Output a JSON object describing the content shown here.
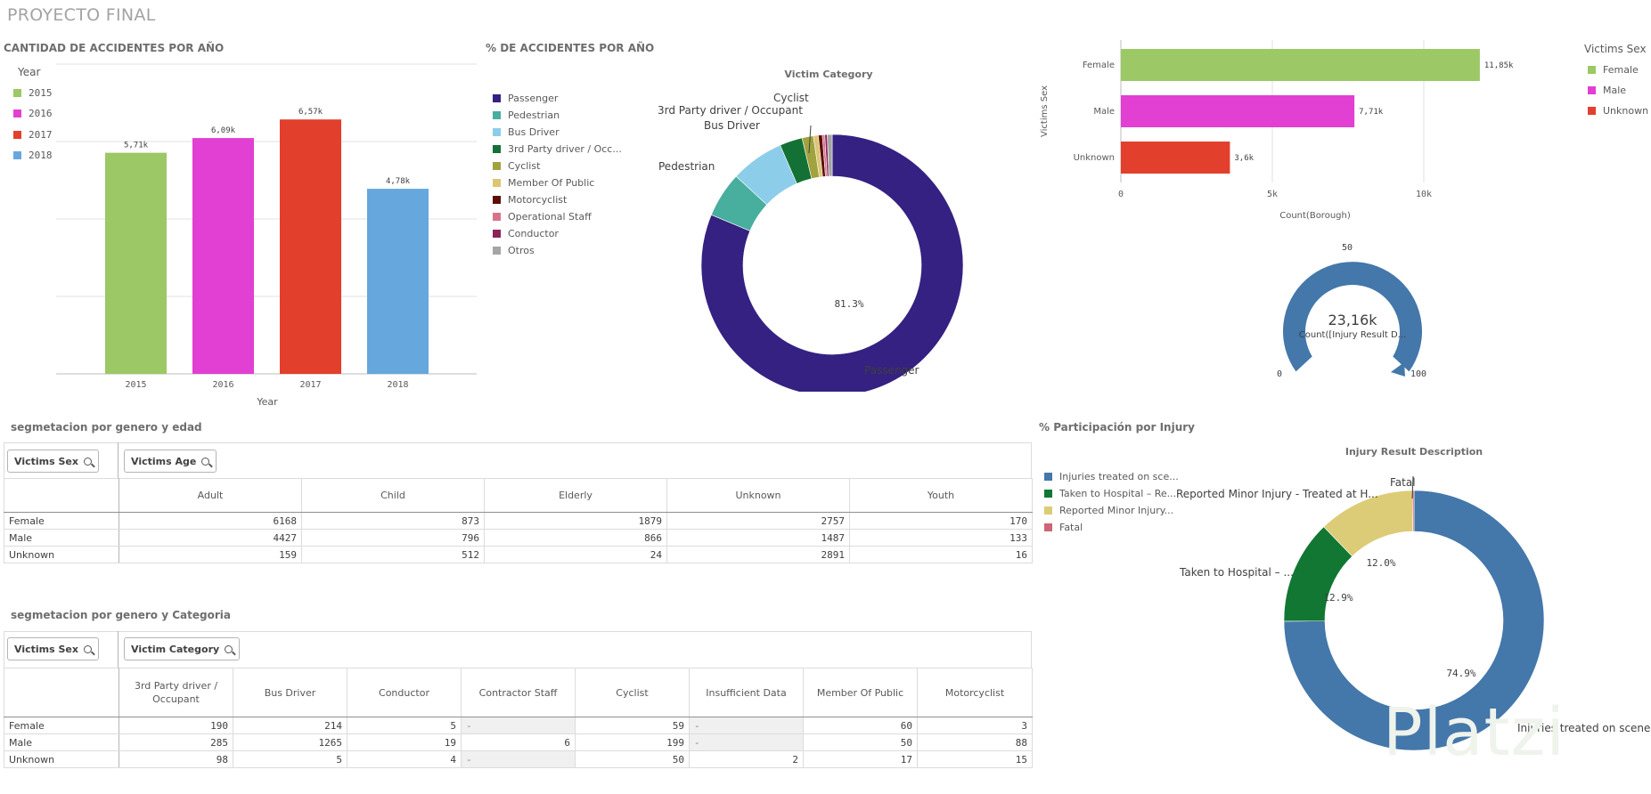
{
  "app": {
    "title": "PROYECTO FINAL"
  },
  "colors": {
    "year_2015": "#9cc865",
    "year_2016": "#e23fd3",
    "year_2017": "#e23f2c",
    "year_2018": "#66a8dd",
    "passenger": "#342181",
    "pedestrian": "#48ae9d",
    "bus_driver": "#8ccde9",
    "third_party": "#137135",
    "cyclist": "#a0a33e",
    "member_public": "#dcc671",
    "motorcyclist": "#5c0e08",
    "operational": "#d9738a",
    "conductor": "#8b2359",
    "otros": "#a5a5a5",
    "inj_scene": "#4477aa",
    "inj_hospital": "#117733",
    "inj_minor": "#ddcc77",
    "inj_fatal": "#cc6677"
  },
  "panel_year_bars": {
    "title": "CANTIDAD DE ACCIDENTES POR AÑO",
    "legend_title": "Year",
    "legend": [
      "2015",
      "2016",
      "2017",
      "2018"
    ],
    "chart_data": {
      "type": "bar",
      "categories": [
        "2015",
        "2016",
        "2017",
        "2018"
      ],
      "values": [
        5710,
        6090,
        6570,
        4780
      ],
      "value_labels": [
        "5,71k",
        "6,09k",
        "6,57k",
        "4,78k"
      ],
      "xlabel": "Year",
      "ylabel": "",
      "ylim": [
        0,
        8000
      ],
      "grid": true
    }
  },
  "panel_pct_year": {
    "title": "% DE ACCIDENTES POR AÑO",
    "chart_title": "Victim Category",
    "legend": [
      "Passenger",
      "Pedestrian",
      "Bus Driver",
      "3rd Party driver / Occ...",
      "Cyclist",
      "Member Of Public",
      "Motorcyclist",
      "Operational Staff",
      "Conductor",
      "Otros"
    ],
    "slice_labels": {
      "passenger": "Passenger",
      "pedestrian": "Pedestrian",
      "bus_driver": "Bus Driver",
      "third_party": "3rd Party driver / Occupant",
      "cyclist": "Cyclist"
    },
    "center_label": "81.3%",
    "chart_data": {
      "type": "pie",
      "categories": [
        "Passenger",
        "Pedestrian",
        "Bus Driver",
        "3rd Party driver / Occupant",
        "Cyclist",
        "Member Of Public",
        "Motorcyclist",
        "Operational Staff",
        "Conductor",
        "Otros"
      ],
      "values": [
        81.3,
        5.6,
        6.6,
        2.8,
        1.4,
        0.6,
        0.5,
        0.3,
        0.3,
        0.6
      ],
      "title": "Victim Category",
      "legend_position": "left"
    }
  },
  "panel_sex_bars": {
    "legend_title": "Victims Sex",
    "legend": [
      "Female",
      "Male",
      "Unknown"
    ],
    "chart_data": {
      "type": "bar",
      "orientation": "horizontal",
      "categories": [
        "Female",
        "Male",
        "Unknown"
      ],
      "values": [
        11850,
        7710,
        3600
      ],
      "value_labels": [
        "11,85k",
        "7,71k",
        "3,6k"
      ],
      "xlabel": "Count(Borough)",
      "ylabel": "Victims Sex",
      "xlim": [
        0,
        15000
      ],
      "x_ticks": [
        "0",
        "5k",
        "10k",
        "15k"
      ],
      "legend_position": "right"
    }
  },
  "panel_gauge": {
    "value_text": "23,16k",
    "measure": "Count([Injury Result D...",
    "min": "0",
    "mid": "50",
    "max": "100"
  },
  "panel_age_table": {
    "title": "segmetacion por genero y edad",
    "row_dim": "Victims Sex",
    "col_dim": "Victims Age",
    "columns": [
      "Adult",
      "Child",
      "Elderly",
      "Unknown",
      "Youth"
    ],
    "rows": [
      {
        "label": "Female",
        "values": [
          "6168",
          "873",
          "1879",
          "2757",
          "170"
        ]
      },
      {
        "label": "Male",
        "values": [
          "4427",
          "796",
          "866",
          "1487",
          "133"
        ]
      },
      {
        "label": "Unknown",
        "values": [
          "159",
          "512",
          "24",
          "2891",
          "16"
        ]
      }
    ]
  },
  "panel_cat_table": {
    "title": "segmetacion por genero y Categoria",
    "row_dim": "Victims Sex",
    "col_dim": "Victim Category",
    "columns": [
      "3rd Party driver / Occupant",
      "Bus Driver",
      "Conductor",
      "Contractor Staff",
      "Cyclist",
      "Insufficient Data",
      "Member Of Public",
      "Motorcyclist"
    ],
    "rows": [
      {
        "label": "Female",
        "values": [
          "190",
          "214",
          "5",
          "-",
          "59",
          "-",
          "60",
          "3"
        ]
      },
      {
        "label": "Male",
        "values": [
          "285",
          "1265",
          "19",
          "6",
          "199",
          "-",
          "50",
          "88"
        ]
      },
      {
        "label": "Unknown",
        "values": [
          "98",
          "5",
          "4",
          "-",
          "50",
          "2",
          "17",
          "15"
        ]
      }
    ]
  },
  "panel_injury": {
    "title": "% Participación por Injury",
    "chart_title": "Injury Result Description",
    "legend": [
      "Injuries treated on sce...",
      "Taken to Hospital – Re...",
      "Reported Minor Injury...",
      "Fatal"
    ],
    "slice_labels": {
      "scene": "Injuries treated on scene",
      "hospital": "Taken to Hospital – ...",
      "minor": "Reported Minor Injury - Treated at H...",
      "fatal": "Fatal"
    },
    "pct_labels": {
      "scene": "74.9%",
      "hospital": "12.9%",
      "minor": "12.0%"
    },
    "chart_data": {
      "type": "pie",
      "categories": [
        "Injuries treated on scene",
        "Taken to Hospital – Re...",
        "Reported Minor Injury...",
        "Fatal"
      ],
      "values": [
        74.9,
        12.9,
        12.0,
        0.2
      ],
      "title": "Injury Result Description",
      "legend_position": "left"
    }
  },
  "watermark": {
    "text": "Platzi"
  }
}
